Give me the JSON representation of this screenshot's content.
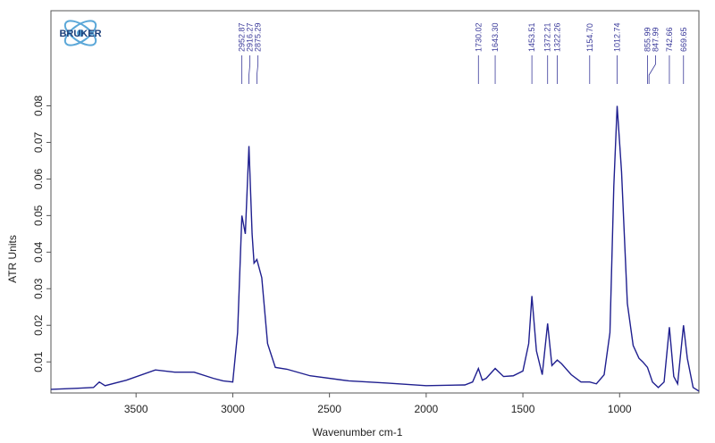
{
  "chart_data": {
    "type": "line",
    "logo_text": "BRUKER",
    "x_label": "Wavenumber cm-1",
    "y_label": "ATR Units",
    "xlim": [
      3940,
      590
    ],
    "ylim": [
      0.0015,
      0.106
    ],
    "xticks": [
      3500,
      3000,
      2500,
      2000,
      1500,
      1000
    ],
    "yticks": [
      0.01,
      0.02,
      0.03,
      0.04,
      0.05,
      0.06,
      0.07,
      0.08
    ],
    "x": [
      3940,
      3800,
      3720,
      3690,
      3660,
      3550,
      3400,
      3300,
      3200,
      3100,
      3050,
      3000,
      2975,
      2952.87,
      2935,
      2916.27,
      2900,
      2890,
      2875.29,
      2850,
      2820,
      2780,
      2720,
      2600,
      2400,
      2200,
      2000,
      1800,
      1760,
      1730.02,
      1710,
      1690,
      1643.3,
      1600,
      1550,
      1500,
      1470,
      1453.51,
      1430,
      1400,
      1372.21,
      1350,
      1322.26,
      1300,
      1250,
      1200,
      1154.7,
      1120,
      1080,
      1050,
      1030,
      1012.74,
      990,
      960,
      930,
      900,
      880,
      855.99,
      830,
      800,
      770,
      742.66,
      720,
      700,
      669.65,
      650,
      620,
      590
    ],
    "series": [
      {
        "color": "#1f1f8f",
        "values": [
          0.0025,
          0.0028,
          0.003,
          0.0045,
          0.0035,
          0.005,
          0.0078,
          0.0072,
          0.0072,
          0.0055,
          0.0048,
          0.0045,
          0.018,
          0.05,
          0.045,
          0.069,
          0.045,
          0.037,
          0.038,
          0.033,
          0.015,
          0.0085,
          0.008,
          0.0062,
          0.0048,
          0.0042,
          0.0035,
          0.0037,
          0.0045,
          0.0082,
          0.005,
          0.0055,
          0.0082,
          0.006,
          0.0062,
          0.0075,
          0.015,
          0.028,
          0.013,
          0.0065,
          0.0205,
          0.009,
          0.0105,
          0.0095,
          0.0065,
          0.0045,
          0.0045,
          0.004,
          0.0065,
          0.018,
          0.058,
          0.08,
          0.062,
          0.026,
          0.0145,
          0.011,
          0.01,
          0.0085,
          0.0045,
          0.003,
          0.0045,
          0.0195,
          0.006,
          0.004,
          0.02,
          0.011,
          0.003,
          0.002
        ]
      }
    ],
    "peak_labels": [
      {
        "value": 2952.87,
        "label": "2952.87"
      },
      {
        "value": 2916.27,
        "label": "2916.27"
      },
      {
        "value": 2875.29,
        "label": "2875.29"
      },
      {
        "value": 1730.02,
        "label": "1730.02"
      },
      {
        "value": 1643.3,
        "label": "1643.30"
      },
      {
        "value": 1453.51,
        "label": "1453.51"
      },
      {
        "value": 1372.21,
        "label": "1372.21"
      },
      {
        "value": 1322.26,
        "label": "1322.26"
      },
      {
        "value": 1154.7,
        "label": "1154.70"
      },
      {
        "value": 1012.74,
        "label": "1012.74"
      },
      {
        "value": 855.99,
        "label": "855.99"
      },
      {
        "value": 847.99,
        "label": "847.99"
      },
      {
        "value": 742.66,
        "label": "742.66"
      },
      {
        "value": 669.65,
        "label": "669.65"
      }
    ]
  }
}
